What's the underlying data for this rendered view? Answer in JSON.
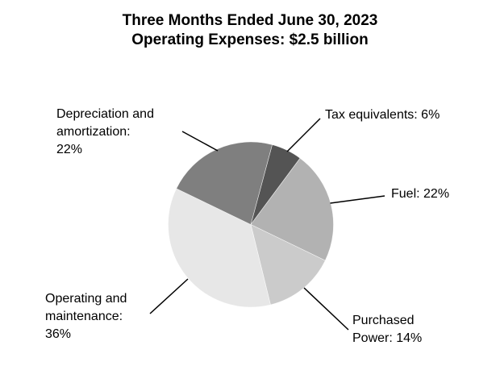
{
  "title": {
    "line1": "Three Months Ended June 30, 2023",
    "line2": "Operating Expenses: $2.5 billion"
  },
  "chart_data": {
    "type": "pie",
    "title": "Three Months Ended June 30, 2023",
    "subtitle": "Operating Expenses: $2.5 billion",
    "total": "$2.5 billion",
    "start_angle_deg": 75,
    "direction": "clockwise",
    "legend_position": "outside-callout-labels",
    "slices": [
      {
        "name": "Tax equivalents",
        "pct": 6,
        "color": "#545454",
        "label": "Tax equivalents: 6%",
        "label_lines": [
          "Tax equivalents: 6%"
        ]
      },
      {
        "name": "Fuel",
        "pct": 22,
        "color": "#b2b2b2",
        "label": "Fuel: 22%",
        "label_lines": [
          "Fuel: 22%"
        ]
      },
      {
        "name": "Purchased Power",
        "pct": 14,
        "color": "#cbcbcb",
        "label": "Purchased Power: 14%",
        "label_lines": [
          "Purchased",
          "Power: 14%"
        ]
      },
      {
        "name": "Operating and maintenance",
        "pct": 36,
        "color": "#e7e7e7",
        "label": "Operating and maintenance: 36%",
        "label_lines": [
          "Operating and",
          "maintenance:",
          "36%"
        ]
      },
      {
        "name": "Depreciation and amortization",
        "pct": 22,
        "color": "#7f7f7f",
        "label": "Depreciation and amortization: 22%",
        "label_lines": [
          "Depreciation and",
          "amortization:",
          "22%"
        ]
      }
    ],
    "colors": {
      "leader_line": "#000000",
      "slice_edge": "#ffffff",
      "text": "#000000",
      "background": "#ffffff"
    }
  }
}
